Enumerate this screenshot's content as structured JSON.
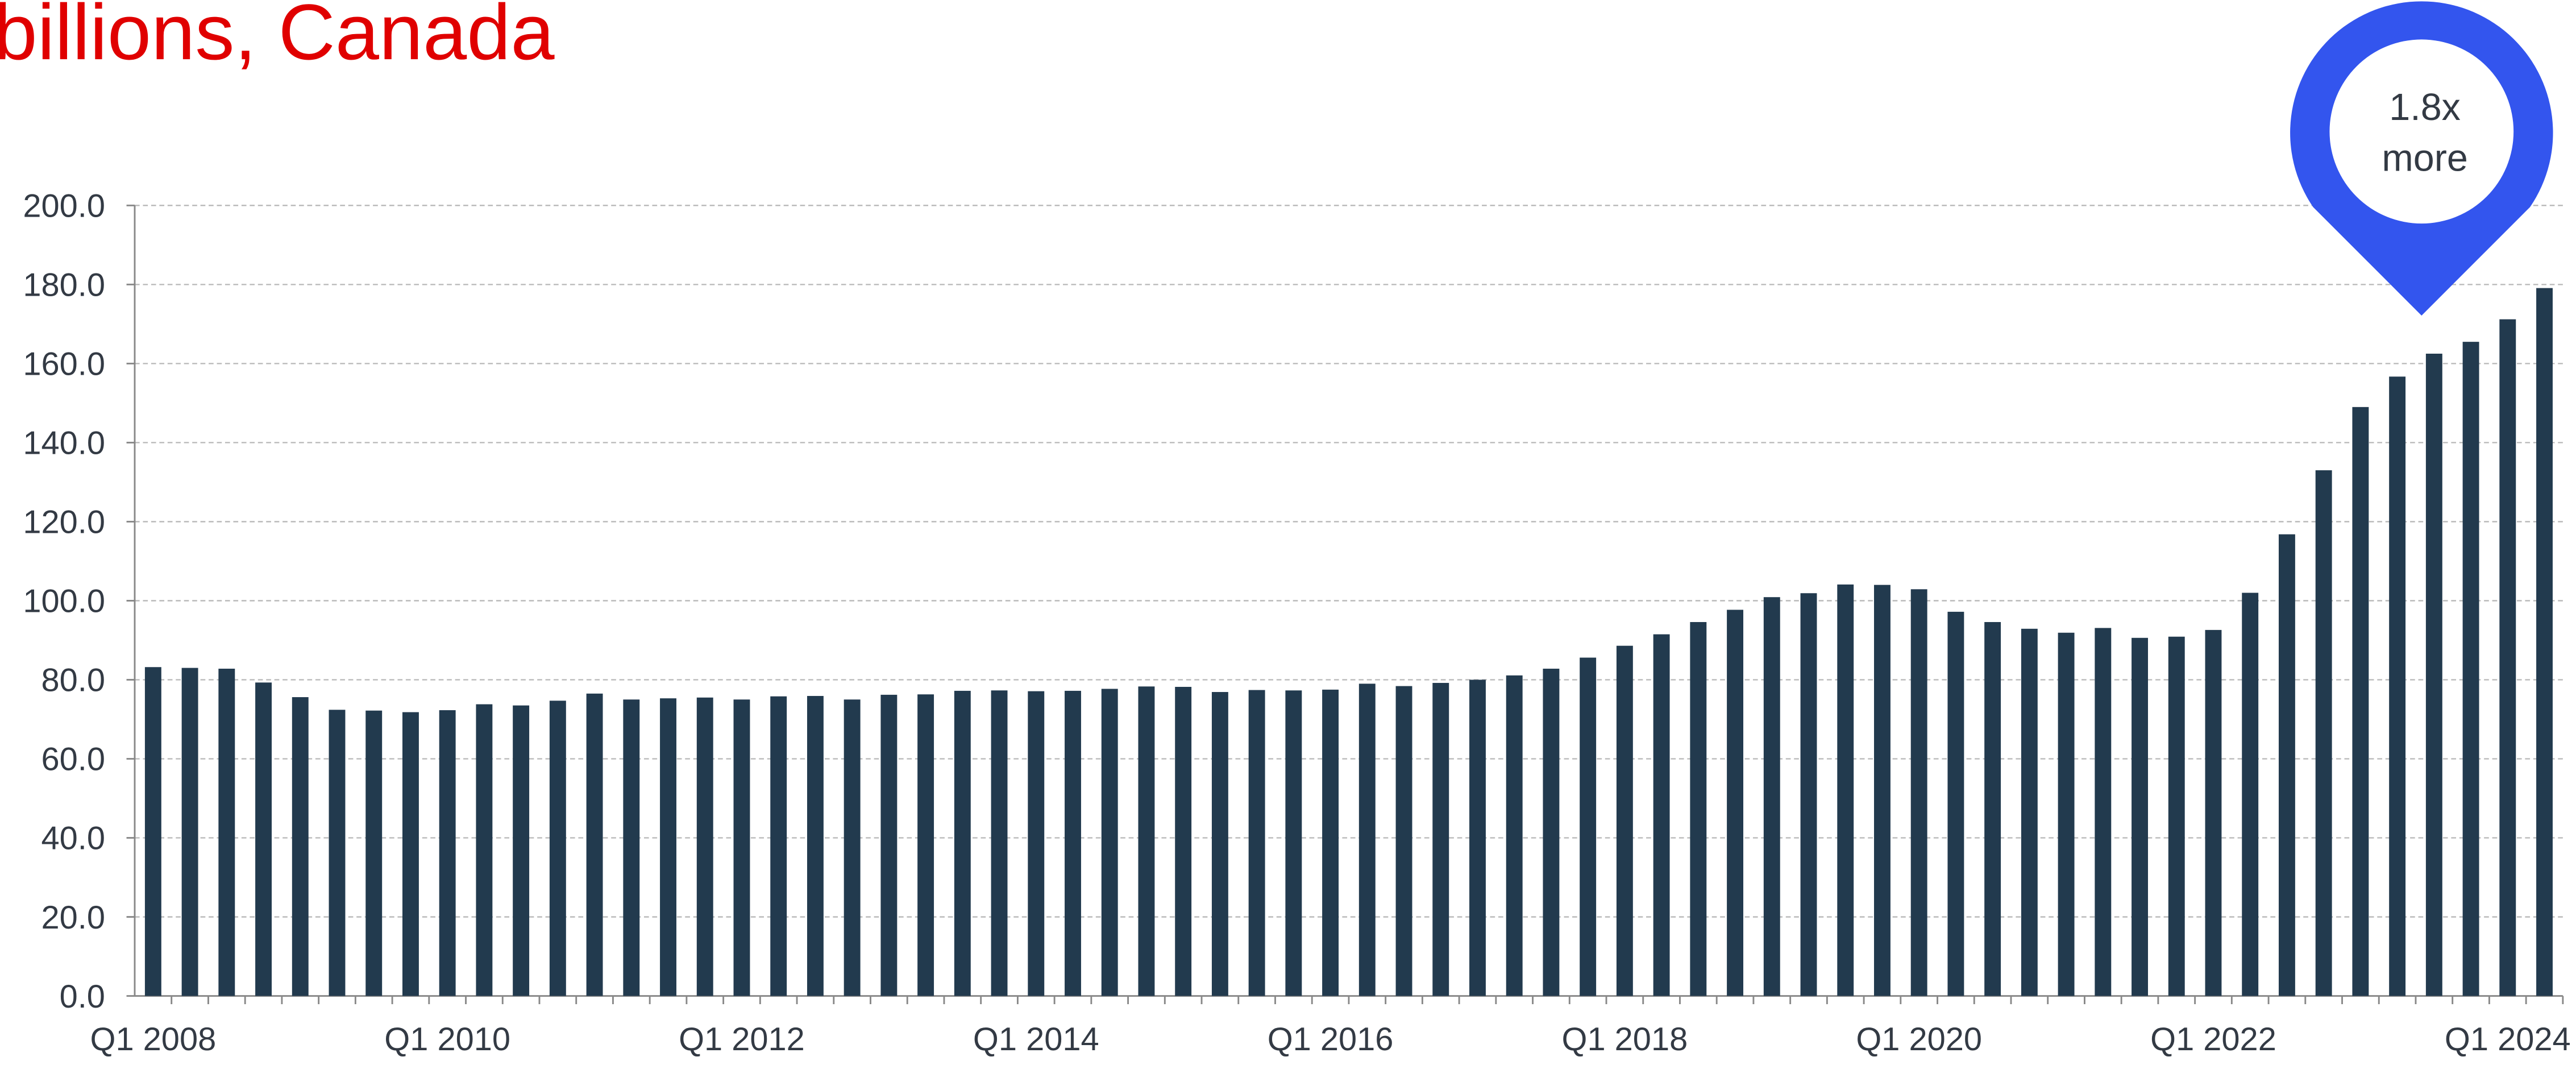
{
  "chart_data": {
    "type": "bar",
    "title": "billions, Canada",
    "annotation_lines": [
      "1.8x",
      "more"
    ],
    "categories": [
      "Q1 2008",
      null,
      null,
      null,
      null,
      null,
      null,
      null,
      "Q1 2010",
      null,
      null,
      null,
      null,
      null,
      null,
      null,
      "Q1 2012",
      null,
      null,
      null,
      null,
      null,
      null,
      null,
      "Q1 2014",
      null,
      null,
      null,
      null,
      null,
      null,
      null,
      "Q1 2016",
      null,
      null,
      null,
      null,
      null,
      null,
      null,
      "Q1 2018",
      null,
      null,
      null,
      null,
      null,
      null,
      null,
      "Q1 2020",
      null,
      null,
      null,
      null,
      null,
      null,
      null,
      "Q1 2022",
      null,
      null,
      null,
      null,
      null,
      null,
      null,
      "Q1 2024",
      null
    ],
    "values": [
      83.2,
      83.0,
      82.8,
      79.3,
      75.6,
      72.4,
      72.2,
      71.8,
      72.3,
      73.8,
      73.5,
      74.7,
      76.5,
      75.0,
      75.3,
      75.5,
      75.0,
      75.8,
      75.9,
      75.0,
      76.2,
      76.3,
      77.2,
      77.3,
      77.1,
      77.2,
      77.7,
      78.3,
      78.2,
      76.9,
      77.4,
      77.3,
      77.5,
      79.0,
      78.4,
      79.2,
      80.0,
      81.1,
      82.8,
      85.6,
      88.6,
      91.5,
      94.6,
      97.7,
      100.9,
      101.9,
      104.1,
      104.0,
      102.9,
      97.2,
      94.6,
      92.9,
      91.9,
      93.1,
      90.6,
      90.9,
      92.6,
      102.0,
      116.8,
      133.0,
      149.0,
      156.7,
      162.5,
      165.5,
      171.2,
      179.1
    ],
    "color": "#223a4e",
    "ylim": [
      0,
      200
    ],
    "yticks": [
      {
        "value": 0,
        "label": "0.0"
      },
      {
        "value": 20,
        "label": "20.0"
      },
      {
        "value": 40,
        "label": "40.0"
      },
      {
        "value": 60,
        "label": "60.0"
      },
      {
        "value": 80,
        "label": "80.0"
      },
      {
        "value": 100,
        "label": "100.0"
      },
      {
        "value": 120,
        "label": "120.0"
      },
      {
        "value": 140,
        "label": "140.0"
      },
      {
        "value": 160,
        "label": "160.0"
      },
      {
        "value": 180,
        "label": "180.0"
      },
      {
        "value": 200,
        "label": "200.0"
      }
    ],
    "grid": true
  }
}
